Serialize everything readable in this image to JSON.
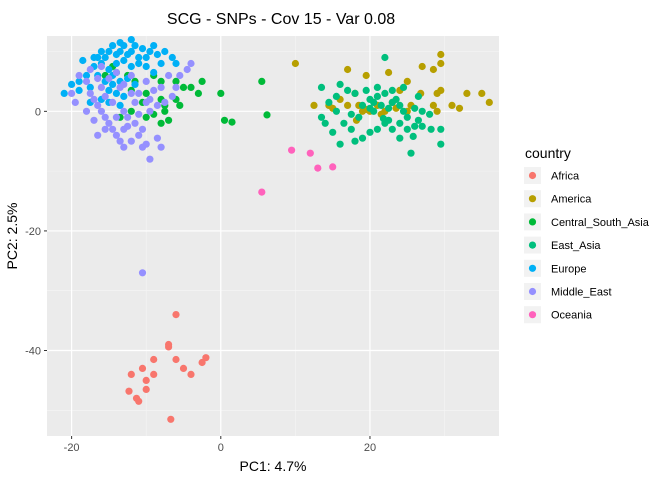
{
  "chart_data": {
    "type": "scatter",
    "title": "SCG - SNPs - Cov 15 - Var 0.08",
    "xlabel": "PC1: 4.7%",
    "ylabel": "PC2: 2.5%",
    "xlim": [
      -23.3,
      37.3
    ],
    "ylim": [
      -54.3,
      12.6
    ],
    "x_ticks": [
      -20,
      0,
      20
    ],
    "y_ticks": [
      -40,
      -20,
      0
    ],
    "x_tick_labels": [
      "-20",
      "0",
      "20"
    ],
    "y_tick_labels": [
      "-40",
      "-20",
      "0"
    ],
    "grid": true,
    "background": "#ebebeb",
    "legend": {
      "title": "country",
      "position": "right"
    },
    "series": [
      {
        "name": "Africa",
        "color": "#F8766D",
        "points": [
          [
            -6,
            -34
          ],
          [
            -7,
            -39
          ],
          [
            -7,
            -39.4
          ],
          [
            -9,
            -41.5
          ],
          [
            -6,
            -41.5
          ],
          [
            -10.5,
            -43
          ],
          [
            -2.5,
            -42
          ],
          [
            -2,
            -41.2
          ],
          [
            -5,
            -43
          ],
          [
            -4,
            -44
          ],
          [
            -9,
            -44
          ],
          [
            -12,
            -44
          ],
          [
            -10,
            -45
          ],
          [
            -10,
            -46.5
          ],
          [
            -12.3,
            -46.8
          ],
          [
            -11.3,
            -48
          ],
          [
            -11,
            -48.5
          ],
          [
            -6.7,
            -51.5
          ]
        ]
      },
      {
        "name": "America",
        "color": "#B79F00",
        "points": [
          [
            10,
            8
          ],
          [
            17,
            7
          ],
          [
            19.5,
            6
          ],
          [
            22.5,
            6.5
          ],
          [
            29.5,
            9.5
          ],
          [
            29.5,
            8
          ],
          [
            27,
            7.5
          ],
          [
            28.5,
            7
          ],
          [
            18,
            3
          ],
          [
            24,
            3.5
          ],
          [
            25,
            5
          ],
          [
            26.8,
            3
          ],
          [
            29,
            3
          ],
          [
            29.5,
            3.5
          ],
          [
            33,
            3
          ],
          [
            35,
            3
          ],
          [
            36,
            1.5
          ],
          [
            31,
            1
          ],
          [
            32,
            0.5
          ],
          [
            28.5,
            1
          ],
          [
            29,
            0
          ],
          [
            25.5,
            1
          ],
          [
            25,
            0
          ],
          [
            23,
            1.5
          ],
          [
            22,
            0
          ],
          [
            21,
            1
          ],
          [
            20,
            0
          ],
          [
            21.5,
            -0.5
          ],
          [
            23.5,
            0.5
          ],
          [
            12.5,
            1
          ],
          [
            17,
            1
          ],
          [
            18.5,
            1
          ],
          [
            19,
            0
          ],
          [
            16,
            2
          ],
          [
            15,
            0.5
          ],
          [
            18.2,
            -1.5
          ],
          [
            14.5,
            1
          ],
          [
            19.5,
            0.3
          ]
        ]
      },
      {
        "name": "Central_South_Asia",
        "color": "#00BA38",
        "points": [
          [
            -14.5,
            7.5
          ],
          [
            -14,
            6.5
          ],
          [
            -12.5,
            6
          ],
          [
            -9,
            6
          ],
          [
            -8,
            5
          ],
          [
            -6,
            5
          ],
          [
            -5,
            4
          ],
          [
            -4,
            4
          ],
          [
            -2.5,
            5
          ],
          [
            -3,
            3
          ],
          [
            -12,
            3.5
          ],
          [
            -10,
            3
          ],
          [
            -10.5,
            1.5
          ],
          [
            -8,
            2
          ],
          [
            -7.5,
            1
          ],
          [
            -6,
            2
          ],
          [
            -5.5,
            1
          ],
          [
            0,
            3
          ],
          [
            5.5,
            5
          ],
          [
            -9,
            -0.5
          ],
          [
            -10,
            -1
          ],
          [
            -7,
            -1.5
          ],
          [
            -8,
            -2
          ],
          [
            -12,
            0
          ],
          [
            -13.5,
            -1
          ],
          [
            -7.5,
            0
          ],
          [
            0.5,
            -1.5
          ],
          [
            1.5,
            -1.8
          ],
          [
            6.2,
            -0.6
          ],
          [
            -15.5,
            6
          ],
          [
            -11.5,
            5
          ]
        ]
      },
      {
        "name": "East_Asia",
        "color": "#00BF7D",
        "points": [
          [
            13.5,
            4
          ],
          [
            16,
            4.5
          ],
          [
            17,
            3.5
          ],
          [
            18,
            3
          ],
          [
            19.5,
            3.5
          ],
          [
            21,
            4
          ],
          [
            22,
            3
          ],
          [
            23,
            3.5
          ],
          [
            20,
            2
          ],
          [
            20.5,
            1.5
          ],
          [
            21.5,
            1
          ],
          [
            22.5,
            0.5
          ],
          [
            23,
            1.5
          ],
          [
            24,
            1
          ],
          [
            24.5,
            0
          ],
          [
            25,
            -1
          ],
          [
            26,
            0.5
          ],
          [
            26.5,
            -1.5
          ],
          [
            27,
            0
          ],
          [
            28,
            -0.5
          ],
          [
            27,
            -2.5
          ],
          [
            26,
            -2.5
          ],
          [
            25,
            -3
          ],
          [
            24,
            -2
          ],
          [
            23,
            -3
          ],
          [
            22,
            -2
          ],
          [
            21,
            -3
          ],
          [
            20,
            -3.5
          ],
          [
            19,
            -4.5
          ],
          [
            18,
            -5
          ],
          [
            25.5,
            -7
          ],
          [
            29.5,
            -5.5
          ],
          [
            29.5,
            -3
          ],
          [
            18.5,
            -1
          ],
          [
            17.5,
            -0.5
          ],
          [
            15.5,
            0
          ],
          [
            16.5,
            -2
          ],
          [
            17.5,
            -3
          ],
          [
            15,
            -3.5
          ],
          [
            14,
            -2
          ],
          [
            13.5,
            -1
          ],
          [
            14.5,
            1.5
          ],
          [
            15.5,
            2.5
          ],
          [
            19,
            1
          ],
          [
            20,
            0.5
          ],
          [
            21,
            2.5
          ],
          [
            22,
            9
          ],
          [
            24.5,
            4
          ],
          [
            26.5,
            2.5
          ],
          [
            20.5,
            0
          ],
          [
            21.8,
            -1.2
          ],
          [
            16,
            -5.5
          ],
          [
            24,
            -4.5
          ],
          [
            28.2,
            -3
          ],
          [
            25.8,
            -4.2
          ],
          [
            23.5,
            2
          ],
          [
            22.5,
            -1.5
          ]
        ]
      },
      {
        "name": "Europe",
        "color": "#00B0F6",
        "points": [
          [
            -21,
            3
          ],
          [
            -20,
            4.5
          ],
          [
            -19,
            5
          ],
          [
            -18,
            6
          ],
          [
            -17.5,
            4
          ],
          [
            -17,
            7.5
          ],
          [
            -16.5,
            9
          ],
          [
            -16,
            10
          ],
          [
            -15.5,
            9
          ],
          [
            -15,
            10
          ],
          [
            -14.5,
            11
          ],
          [
            -14,
            9.5
          ],
          [
            -13.5,
            10
          ],
          [
            -13,
            11
          ],
          [
            -12.5,
            9.5
          ],
          [
            -12,
            10
          ],
          [
            -11.5,
            11
          ],
          [
            -11,
            9
          ],
          [
            -10.5,
            10.5
          ],
          [
            -10,
            9
          ],
          [
            -9.5,
            10
          ],
          [
            -9,
            11
          ],
          [
            -8.5,
            9.5
          ],
          [
            -7.5,
            10
          ],
          [
            -6.5,
            9
          ],
          [
            -6,
            8
          ],
          [
            -16,
            8
          ],
          [
            -15,
            7
          ],
          [
            -14,
            8
          ],
          [
            -13,
            8.5
          ],
          [
            -12,
            7.5
          ],
          [
            -11,
            8
          ],
          [
            -10,
            7.5
          ],
          [
            -16.5,
            6
          ],
          [
            -15.5,
            5
          ],
          [
            -14.5,
            4.5
          ],
          [
            -13.5,
            5
          ],
          [
            -12.5,
            5.5
          ],
          [
            -11.5,
            4.5
          ],
          [
            -15,
            3.5
          ],
          [
            -14,
            3
          ],
          [
            -13,
            2.5
          ],
          [
            -16,
            2
          ],
          [
            -15,
            1.5
          ],
          [
            -13.5,
            1
          ],
          [
            -17,
            9
          ],
          [
            -18.5,
            8.5
          ],
          [
            -12,
            12
          ],
          [
            -13.5,
            11.5
          ],
          [
            -8,
            8
          ],
          [
            -9,
            6.5
          ],
          [
            -17.5,
            1.5
          ],
          [
            -19,
            3.5
          ],
          [
            -14.5,
            6
          ]
        ]
      },
      {
        "name": "Middle_East",
        "color": "#9590FF",
        "points": [
          [
            -17.5,
            3
          ],
          [
            -17,
            2
          ],
          [
            -16.5,
            1
          ],
          [
            -16,
            0
          ],
          [
            -15.5,
            -1
          ],
          [
            -15,
            -2
          ],
          [
            -14.5,
            -3
          ],
          [
            -14,
            -4
          ],
          [
            -13.5,
            -5
          ],
          [
            -13,
            -6
          ],
          [
            -12,
            -5
          ],
          [
            -11,
            -4
          ],
          [
            -10.5,
            -3
          ],
          [
            -10,
            -5.5
          ],
          [
            -9.5,
            -8
          ],
          [
            -8.5,
            -4.5
          ],
          [
            -8,
            -6
          ],
          [
            -12.5,
            -1
          ],
          [
            -13,
            0
          ],
          [
            -11.5,
            1.5
          ],
          [
            -12,
            3
          ],
          [
            -13.5,
            4
          ],
          [
            -15,
            5.5
          ],
          [
            -16,
            4
          ],
          [
            -18,
            5
          ],
          [
            -19,
            6
          ],
          [
            -17.5,
            7
          ],
          [
            -16,
            7.5
          ],
          [
            -14,
            6.5
          ],
          [
            -12,
            6
          ],
          [
            -10,
            5
          ],
          [
            -9,
            3.5
          ],
          [
            -8,
            4
          ],
          [
            -7,
            6
          ],
          [
            -6,
            4
          ],
          [
            -5.5,
            6
          ],
          [
            -4.5,
            7
          ],
          [
            -6.5,
            2.5
          ],
          [
            -7.5,
            1.5
          ],
          [
            -9.5,
            2
          ],
          [
            -11,
            -0.5
          ],
          [
            -14,
            -1
          ],
          [
            -15.5,
            -3
          ],
          [
            -17,
            -1.5
          ],
          [
            -18,
            0
          ],
          [
            -19.5,
            1.5
          ],
          [
            -20,
            3
          ],
          [
            -16.5,
            -4
          ],
          [
            -13,
            -3
          ],
          [
            -11.5,
            -2
          ],
          [
            -10.5,
            -6
          ],
          [
            -12.5,
            -2.5
          ],
          [
            -14.5,
            1.5
          ],
          [
            -15.5,
            2.5
          ],
          [
            -13,
            4.5
          ],
          [
            -11,
            3
          ],
          [
            -9.5,
            0
          ],
          [
            -8.5,
            1
          ],
          [
            -10,
            1.5
          ],
          [
            -16.5,
            5.5
          ],
          [
            -10.5,
            -27
          ],
          [
            -4,
            8
          ]
        ]
      },
      {
        "name": "Oceania",
        "color": "#FF62BC",
        "points": [
          [
            5.5,
            -13.5
          ],
          [
            9.5,
            -6.5
          ],
          [
            12,
            -7
          ],
          [
            13,
            -9.5
          ],
          [
            15,
            -9.3
          ]
        ]
      }
    ]
  }
}
